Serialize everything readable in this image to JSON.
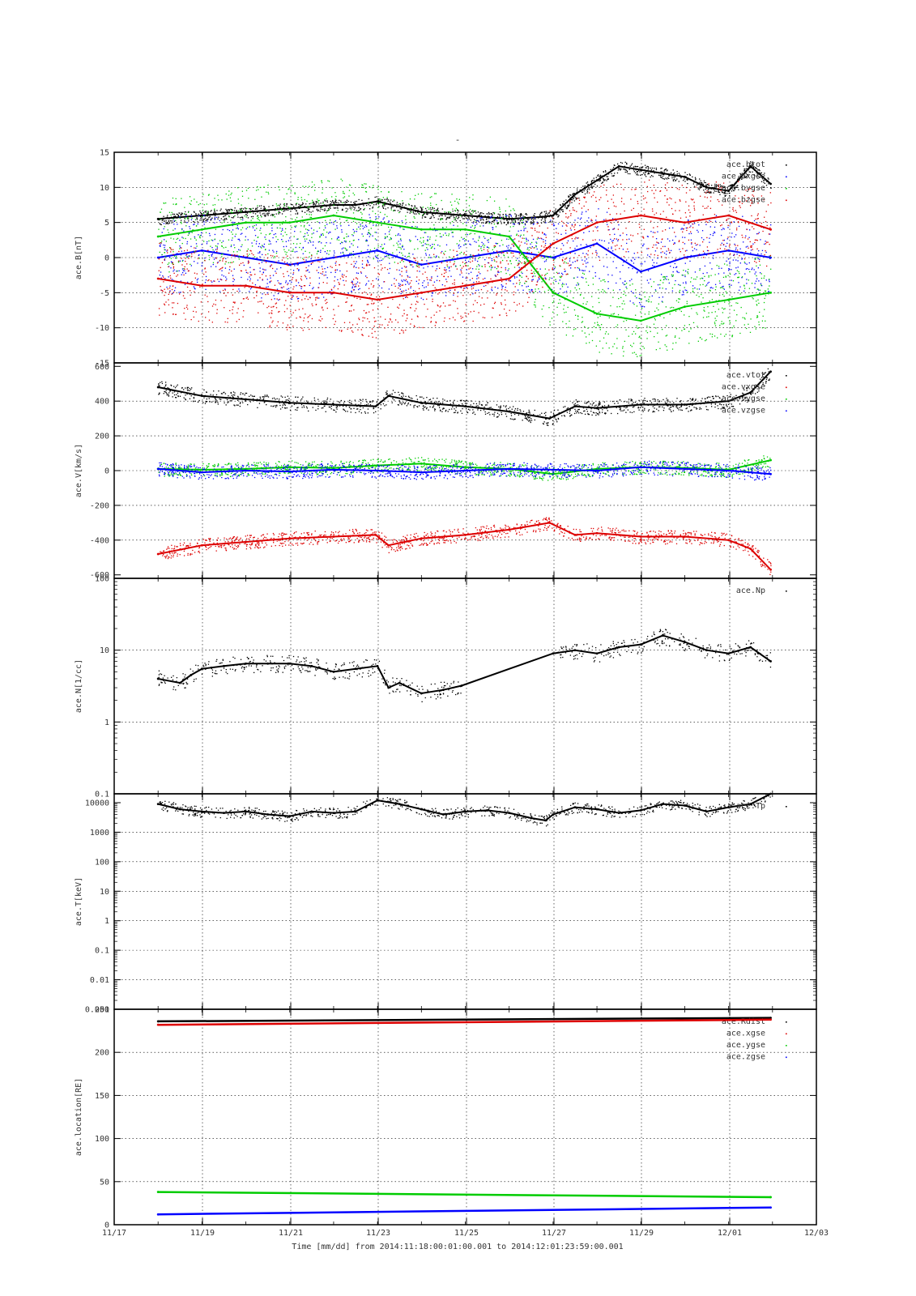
{
  "page": {
    "title": "-",
    "footer_label": "Time [mm/dd]  from 2014:11:18:00:01:00.001  to  2014:12:01:23:59:00.001"
  },
  "chart_data": [
    {
      "type": "scatter",
      "ylabel": "ace.B[nT]",
      "ylim": [
        -15,
        15
      ],
      "yticks": [
        -15,
        -10,
        -5,
        0,
        5,
        10,
        15
      ],
      "xlim": [
        "2014-11-17",
        "2014-12-03"
      ],
      "xticks": [
        "11/17",
        "11/19",
        "11/21",
        "11/23",
        "11/25",
        "11/27",
        "11/29",
        "12/01",
        "12/03"
      ],
      "legend": "top-right",
      "series": [
        {
          "name": "ace.btot",
          "color": "#000000",
          "x": [
            "11-18T00",
            "11-19T00",
            "11-20T00",
            "11-21T00",
            "11-22T00",
            "11-22T12",
            "11-23T00",
            "11-24T00",
            "11-25T00",
            "11-26T00",
            "11-26T18",
            "11-27T00",
            "11-27T12",
            "11-28T00",
            "11-28T12",
            "11-29T00",
            "11-29T12",
            "11-30T00",
            "11-30T12",
            "12-01T00",
            "12-01T12",
            "12-01T23"
          ],
          "values": [
            5.5,
            6,
            6.5,
            7,
            7.5,
            7.5,
            8,
            6.5,
            6,
            5.5,
            5.8,
            6,
            9,
            11,
            13,
            12.5,
            12,
            11.5,
            10,
            9.5,
            13,
            10.5
          ]
        },
        {
          "name": "ace.bxgse",
          "color": "#0000ff",
          "x": [
            "11-18T00",
            "11-19T00",
            "11-20T00",
            "11-21T00",
            "11-22T00",
            "11-23T00",
            "11-24T00",
            "11-25T00",
            "11-26T00",
            "11-27T00",
            "11-28T00",
            "11-29T00",
            "11-30T00",
            "12-01T00",
            "12-01T23"
          ],
          "values": [
            0,
            1,
            0,
            -1,
            0,
            1,
            -1,
            0,
            1,
            0,
            2,
            -2,
            0,
            1,
            0
          ]
        },
        {
          "name": "ace.bygse",
          "color": "#00cc00",
          "x": [
            "11-18T00",
            "11-19T00",
            "11-20T00",
            "11-21T00",
            "11-22T00",
            "11-23T00",
            "11-24T00",
            "11-25T00",
            "11-26T00",
            "11-27T00",
            "11-28T00",
            "11-29T00",
            "11-30T00",
            "12-01T00",
            "12-01T23"
          ],
          "values": [
            3,
            4,
            5,
            5,
            6,
            5,
            4,
            4,
            3,
            -5,
            -8,
            -9,
            -7,
            -6,
            -5
          ]
        },
        {
          "name": "ace.bzgse",
          "color": "#dd0000",
          "x": [
            "11-18T00",
            "11-19T00",
            "11-20T00",
            "11-21T00",
            "11-22T00",
            "11-23T00",
            "11-24T00",
            "11-25T00",
            "11-26T00",
            "11-27T00",
            "11-28T00",
            "11-29T00",
            "11-30T00",
            "12-01T00",
            "12-01T23"
          ],
          "values": [
            -3,
            -4,
            -4,
            -5,
            -5,
            -6,
            -5,
            -4,
            -3,
            2,
            5,
            6,
            5,
            6,
            4
          ]
        }
      ]
    },
    {
      "type": "scatter",
      "ylabel": "ace.V[km/s]",
      "ylim": [
        -620,
        620
      ],
      "yticks": [
        -600,
        -400,
        -200,
        0,
        200,
        400,
        600
      ],
      "legend": "top-right",
      "series": [
        {
          "name": "ace.vtot",
          "color": "#000000",
          "x": [
            "11-18T00",
            "11-19T00",
            "11-20T00",
            "11-21T00",
            "11-22T00",
            "11-22T23",
            "11-23T06",
            "11-24T00",
            "11-25T00",
            "11-26T00",
            "11-26T22",
            "11-27T12",
            "11-28T00",
            "11-29T00",
            "11-30T00",
            "12-01T00",
            "12-01T12",
            "12-01T23"
          ],
          "values": [
            480,
            430,
            410,
            390,
            380,
            370,
            430,
            390,
            370,
            340,
            300,
            370,
            360,
            380,
            380,
            400,
            450,
            570
          ]
        },
        {
          "name": "ace.vxgse",
          "color": "#dd0000",
          "x": [
            "11-18T00",
            "11-19T00",
            "11-20T00",
            "11-21T00",
            "11-22T00",
            "11-22T23",
            "11-23T06",
            "11-24T00",
            "11-25T00",
            "11-26T00",
            "11-26T22",
            "11-27T12",
            "11-28T00",
            "11-29T00",
            "11-30T00",
            "12-01T00",
            "12-01T12",
            "12-01T23"
          ],
          "values": [
            -480,
            -430,
            -410,
            -390,
            -380,
            -370,
            -430,
            -390,
            -370,
            -340,
            -300,
            -370,
            -360,
            -380,
            -380,
            -400,
            -450,
            -570
          ]
        },
        {
          "name": "ace.vygse",
          "color": "#00cc00",
          "x": [
            "11-18T00",
            "11-19T00",
            "11-20T00",
            "11-21T00",
            "11-22T00",
            "11-23T00",
            "11-24T00",
            "11-25T00",
            "11-26T00",
            "11-27T00",
            "11-28T00",
            "11-29T00",
            "11-30T00",
            "12-01T00",
            "12-01T23"
          ],
          "values": [
            10,
            5,
            10,
            20,
            15,
            30,
            40,
            20,
            10,
            -20,
            10,
            20,
            15,
            5,
            60
          ]
        },
        {
          "name": "ace.vzgse",
          "color": "#0000ff",
          "x": [
            "11-18T00",
            "11-19T00",
            "11-20T00",
            "11-21T00",
            "11-22T00",
            "11-23T00",
            "11-24T00",
            "11-25T00",
            "11-26T00",
            "11-27T00",
            "11-28T00",
            "11-29T00",
            "11-30T00",
            "12-01T00",
            "12-01T23"
          ],
          "values": [
            10,
            -10,
            0,
            -5,
            5,
            0,
            -10,
            0,
            10,
            5,
            0,
            20,
            10,
            0,
            -20
          ]
        }
      ]
    },
    {
      "type": "scatter",
      "ylabel": "ace.N[1/cc]",
      "yscale": "log",
      "ylim": [
        0.1,
        100
      ],
      "yticks": [
        0.1,
        1,
        10,
        100
      ],
      "legend": "top-right",
      "series": [
        {
          "name": "ace.Np",
          "color": "#000000",
          "x": [
            "11-18T00",
            "11-18T12",
            "11-18T18",
            "11-19T00",
            "11-19T12",
            "11-20T00",
            "11-20T12",
            "11-21T00",
            "11-21T12",
            "11-22T00",
            "11-22T12",
            "11-23T00",
            "11-23T06",
            "11-23T12",
            "11-24T00",
            "11-24T12",
            "11-24T22",
            "11-27T00",
            "11-27T12",
            "11-28T00",
            "11-28T12",
            "11-29T00",
            "11-29T12",
            "11-30T00",
            "11-30T12",
            "12-01T00",
            "12-01T12",
            "12-01T23"
          ],
          "values": [
            4,
            3.5,
            4.5,
            5.5,
            6,
            6.5,
            6.5,
            6.5,
            6,
            5,
            5.5,
            6,
            3,
            3.5,
            2.5,
            2.8,
            3.2,
            9,
            10,
            9,
            11,
            12,
            16,
            13,
            10,
            9,
            11,
            7
          ]
        }
      ]
    },
    {
      "type": "scatter",
      "ylabel": "ace.T[keV]",
      "yscale": "log",
      "ylim": [
        0.001,
        20000
      ],
      "yticks": [
        "0.001",
        "0.01",
        "0.1",
        "1",
        "10",
        "100",
        "1000",
        "10000"
      ],
      "legend": "top-right",
      "series": [
        {
          "name": "ace.Tp",
          "color": "#000000",
          "x": [
            "11-18T00",
            "11-18T12",
            "11-19T00",
            "11-19T12",
            "11-20T00",
            "11-20T12",
            "11-21T00",
            "11-21T12",
            "11-22T00",
            "11-22T12",
            "11-23T00",
            "11-23T12",
            "11-24T00",
            "11-24T12",
            "11-25T00",
            "11-25T12",
            "11-26T00",
            "11-26T12",
            "11-26T20",
            "11-27T00",
            "11-27T12",
            "11-28T00",
            "11-28T12",
            "11-29T00",
            "11-29T12",
            "11-30T00",
            "11-30T12",
            "12-01T00",
            "12-01T12",
            "12-01T23"
          ],
          "values": [
            9000,
            6000,
            5000,
            4500,
            5000,
            4000,
            3500,
            5000,
            4500,
            5000,
            12000,
            9000,
            6000,
            4000,
            5000,
            5500,
            4500,
            3000,
            2500,
            4000,
            7000,
            6000,
            4500,
            5500,
            9000,
            8000,
            5000,
            7000,
            9000,
            20000
          ]
        }
      ]
    },
    {
      "type": "line",
      "ylabel": "ace.location[RE]",
      "ylim": [
        0,
        250
      ],
      "yticks": [
        0,
        50,
        100,
        150,
        200,
        250
      ],
      "legend": "top-right",
      "series": [
        {
          "name": "ace.Rdist",
          "color": "#000000",
          "x": [
            "11-18T00",
            "12-01T23"
          ],
          "values": [
            236,
            240
          ]
        },
        {
          "name": "ace.xgse",
          "color": "#dd0000",
          "x": [
            "11-18T00",
            "12-01T23"
          ],
          "values": [
            232,
            238
          ]
        },
        {
          "name": "ace.ygse",
          "color": "#00cc00",
          "x": [
            "11-18T00",
            "12-01T23"
          ],
          "values": [
            38,
            32
          ]
        },
        {
          "name": "ace.zgse",
          "color": "#0000ff",
          "x": [
            "11-18T00",
            "12-01T23"
          ],
          "values": [
            12,
            20
          ]
        }
      ]
    }
  ]
}
